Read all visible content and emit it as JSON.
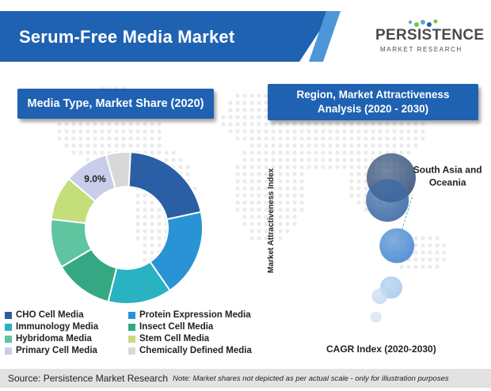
{
  "header": {
    "title": "Serum-Free Media Market",
    "logo_main": "PERSISTENCE",
    "logo_sub": "MARKET RESEARCH"
  },
  "left_panel": {
    "label": "Media Type, Market Share (2020)"
  },
  "right_panel": {
    "label_line1": "Region, Market Attractiveness",
    "label_line2": "Analysis (2020 - 2030)"
  },
  "colors": {
    "banner": "#1f62b2",
    "banner_stripe": "#4e96d8",
    "map_dot": "#dcdcdc"
  },
  "chart_data": [
    {
      "type": "pie",
      "title": "Media Type, Market Share (2020)",
      "donut": true,
      "categories": [
        "CHO Cell Media",
        "Protein Expression Media",
        "Immunology Media",
        "Insect Cell Media",
        "Hybridoma Media",
        "Stem Cell Media",
        "Primary Cell Media",
        "Chemically Defined Media"
      ],
      "values": [
        20.0,
        18.0,
        13.0,
        12.0,
        10.0,
        9.0,
        9.0,
        5.0
      ],
      "colors": [
        "#2a5fa5",
        "#2a93d5",
        "#28b2c2",
        "#34a882",
        "#5fc4a0",
        "#c4de7a",
        "#c9cdea",
        "#d8d8d8"
      ],
      "data_labels": [
        {
          "category": "Primary Cell Media",
          "text": "9.0%"
        }
      ],
      "legend": "bottom"
    },
    {
      "type": "scatter",
      "title": "Region, Market Attractiveness Analysis (2020 - 2030)",
      "xlabel": "CAGR Index (2020-2030)",
      "ylabel": "Market  Attractiveness Index",
      "points": [
        {
          "x": 6.0,
          "y": 8.2,
          "size": 31,
          "color": "#3b567e"
        },
        {
          "x": 5.8,
          "y": 6.9,
          "size": 27,
          "color": "#3d6aa5"
        },
        {
          "x": 6.3,
          "y": 4.3,
          "size": 22,
          "color": "#4a8ad2"
        },
        {
          "x": 6.0,
          "y": 1.9,
          "size": 14,
          "color": "#a9caed"
        },
        {
          "x": 5.4,
          "y": 1.4,
          "size": 10,
          "color": "#c7dcf3"
        },
        {
          "x": 5.2,
          "y": 0.2,
          "size": 7,
          "color": "#d6e4f5"
        }
      ],
      "annotations": [
        {
          "text_line1": "South Asia and",
          "text_line2": "Oceania",
          "point_index": 2
        }
      ],
      "xlim": [
        0,
        10
      ],
      "ylim": [
        0,
        10
      ],
      "grid": false
    }
  ],
  "footer": {
    "source": "Source: Persistence Market Research",
    "note": "Note: Market shares not depicted as per actual scale - only for illustration purposes"
  }
}
